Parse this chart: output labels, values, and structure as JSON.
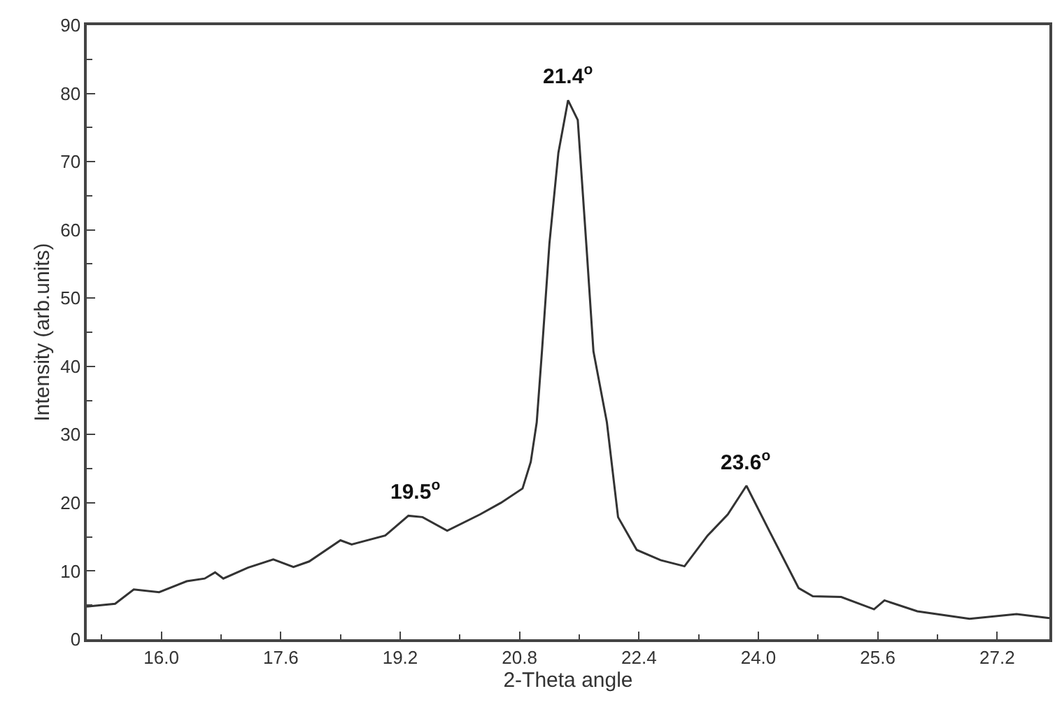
{
  "chart_data": {
    "type": "line",
    "xlabel": "2-Theta angle",
    "ylabel": "Intensity (arb.units)",
    "x": [
      15.0,
      15.38,
      15.63,
      15.97,
      16.34,
      16.58,
      16.72,
      16.83,
      17.16,
      17.5,
      17.77,
      17.98,
      18.4,
      18.55,
      19.0,
      19.31,
      19.5,
      19.83,
      20.27,
      20.55,
      20.84,
      20.95,
      21.03,
      21.1,
      21.2,
      21.32,
      21.45,
      21.58,
      21.7,
      21.79,
      21.97,
      22.12,
      22.37,
      22.69,
      23.01,
      23.32,
      23.59,
      23.84,
      24.16,
      24.54,
      24.73,
      25.11,
      25.55,
      25.69,
      26.13,
      26.83,
      27.46,
      27.9
    ],
    "series": [
      {
        "color": "#333333",
        "values": [
          4.8,
          5.2,
          7.3,
          6.9,
          8.5,
          8.9,
          9.8,
          8.9,
          10.5,
          11.7,
          10.6,
          11.4,
          14.5,
          13.9,
          15.2,
          18.1,
          17.9,
          15.9,
          18.3,
          20.0,
          22.1,
          26,
          31.8,
          42.2,
          58,
          71.3,
          79.0,
          76.1,
          57,
          42.2,
          31.8,
          17.9,
          13.1,
          11.6,
          10.7,
          15.2,
          18.3,
          22.5,
          15.6,
          7.5,
          6.3,
          6.2,
          4.4,
          5.7,
          4.1,
          3.0,
          3.7,
          3.1
        ]
      }
    ],
    "xlim": [
      15.0,
      27.9
    ],
    "ylim": [
      0,
      90
    ],
    "xticks": [
      {
        "value": 16.0,
        "label": "16.0"
      },
      17.6,
      19.2,
      20.8,
      22.4,
      {
        "value": 24.0,
        "label": "24.0"
      },
      25.6,
      27.2
    ],
    "yticks": [
      0,
      10,
      20,
      30,
      40,
      50,
      60,
      70,
      80,
      90
    ],
    "annotations": [
      {
        "text": "19.5$^{o}$",
        "x": 19.4,
        "y": 18.1
      },
      {
        "text": "21.4$^{o}$",
        "x": 21.45,
        "y": 79.0
      },
      {
        "text": "23.6$^{o}$",
        "x": 23.84,
        "y": 22.5
      }
    ],
    "marker": "none",
    "line_style": "solid"
  }
}
